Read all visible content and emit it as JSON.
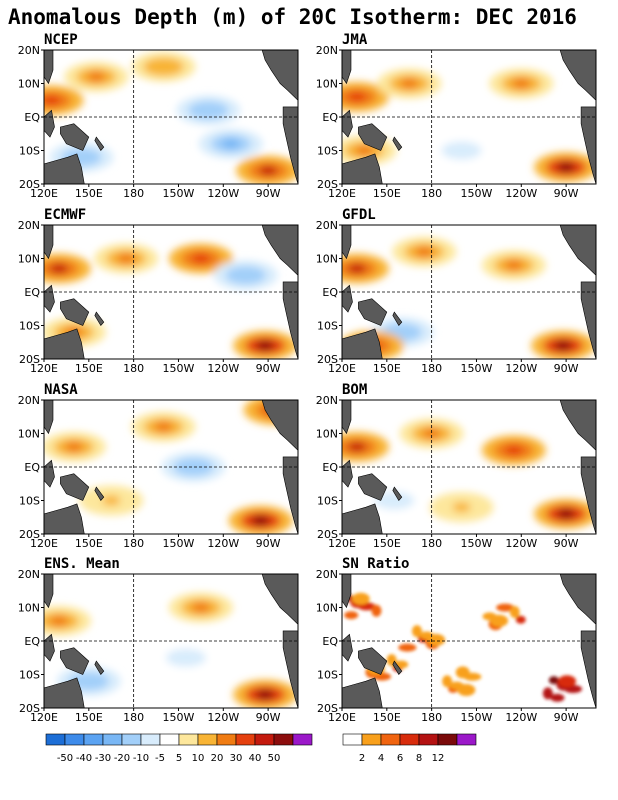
{
  "title": "Anomalous Depth (m) of 20C Isotherm: DEC 2016",
  "panels": [
    {
      "name": "NCEP"
    },
    {
      "name": "JMA"
    },
    {
      "name": "ECMWF"
    },
    {
      "name": "GFDL"
    },
    {
      "name": "NASA"
    },
    {
      "name": "BOM"
    },
    {
      "name": "ENS. Mean"
    },
    {
      "name": "SN Ratio"
    }
  ],
  "x_ticks": [
    "120E",
    "150E",
    "180",
    "150W",
    "120W",
    "90W"
  ],
  "y_ticks": [
    "20N",
    "10N",
    "EQ",
    "10S",
    "20S"
  ],
  "colorbar_anomaly": {
    "labels": [
      "-50",
      "-40",
      "-30",
      "-20",
      "-10",
      "-5",
      "5",
      "10",
      "20",
      "30",
      "40",
      "50"
    ],
    "colors": [
      "#1d6ed6",
      "#3d8bea",
      "#5ba3f2",
      "#79b7f5",
      "#a2cff9",
      "#d8ecfc",
      "#ffffff",
      "#fde79c",
      "#f8b435",
      "#f07c13",
      "#e5400f",
      "#c41a0e",
      "#8c0d0d",
      "#9b18c9"
    ]
  },
  "colorbar_snratio": {
    "labels": [
      "2",
      "4",
      "6",
      "8",
      "12"
    ],
    "colors": [
      "#ffffff",
      "#f8a01c",
      "#f06410",
      "#d82c0c",
      "#b41212",
      "#7a0a0a",
      "#9b18c9"
    ]
  },
  "land_color": "#5a5a5a",
  "chart_data": {
    "type": "heatmap",
    "title": "Anomalous Depth (m) of 20C Isotherm: DEC 2016",
    "panels": [
      "NCEP",
      "JMA",
      "ECMWF",
      "GFDL",
      "NASA",
      "BOM",
      "ENS. Mean",
      "SN Ratio"
    ],
    "x_range": [
      "120E",
      "70W"
    ],
    "y_range": [
      "20S",
      "20N"
    ],
    "x_ticks": [
      "120E",
      "150E",
      "180",
      "150W",
      "120W",
      "90W"
    ],
    "y_ticks": [
      "20N",
      "10N",
      "EQ",
      "10S",
      "20S"
    ],
    "anomaly_levels": [
      -50,
      -40,
      -30,
      -20,
      -10,
      -5,
      5,
      10,
      20,
      30,
      40,
      50
    ],
    "sn_ratio_levels": [
      2,
      4,
      6,
      8,
      12
    ],
    "grid_lines": "dashed at EQ and 180",
    "features": {
      "NCEP": [
        {
          "lon": 155,
          "lat": 12,
          "value": 20
        },
        {
          "lon": 125,
          "lat": 5,
          "value": 30
        },
        {
          "lon": 230,
          "lat": 2,
          "value": -20
        },
        {
          "lon": 245,
          "lat": -8,
          "value": -25
        },
        {
          "lon": 270,
          "lat": -16,
          "value": 40
        },
        {
          "lon": 200,
          "lat": 15,
          "value": 15
        },
        {
          "lon": 145,
          "lat": -12,
          "value": -15
        }
      ],
      "JMA": [
        {
          "lon": 130,
          "lat": 6,
          "value": 35
        },
        {
          "lon": 165,
          "lat": 10,
          "value": 20
        },
        {
          "lon": 240,
          "lat": 10,
          "value": 25
        },
        {
          "lon": 270,
          "lat": -15,
          "value": 50
        },
        {
          "lon": 200,
          "lat": -10,
          "value": -10
        },
        {
          "lon": 135,
          "lat": -10,
          "value": 25
        }
      ],
      "ECMWF": [
        {
          "lon": 130,
          "lat": 7,
          "value": 40
        },
        {
          "lon": 175,
          "lat": 10,
          "value": 25
        },
        {
          "lon": 225,
          "lat": 10,
          "value": 35
        },
        {
          "lon": 268,
          "lat": -16,
          "value": 50
        },
        {
          "lon": 255,
          "lat": 5,
          "value": -15
        },
        {
          "lon": 140,
          "lat": -12,
          "value": 20
        }
      ],
      "GFDL": [
        {
          "lon": 130,
          "lat": 7,
          "value": 40
        },
        {
          "lon": 175,
          "lat": 12,
          "value": 20
        },
        {
          "lon": 235,
          "lat": 8,
          "value": 25
        },
        {
          "lon": 268,
          "lat": -16,
          "value": 50
        },
        {
          "lon": 160,
          "lat": -12,
          "value": -20
        },
        {
          "lon": 140,
          "lat": -16,
          "value": 30
        }
      ],
      "NASA": [
        {
          "lon": 140,
          "lat": 6,
          "value": 20
        },
        {
          "lon": 200,
          "lat": 12,
          "value": 20
        },
        {
          "lon": 275,
          "lat": 17,
          "value": 40
        },
        {
          "lon": 265,
          "lat": -16,
          "value": 50
        },
        {
          "lon": 220,
          "lat": 0,
          "value": -15
        },
        {
          "lon": 165,
          "lat": -10,
          "value": 10
        }
      ],
      "BOM": [
        {
          "lon": 130,
          "lat": 6,
          "value": 40
        },
        {
          "lon": 180,
          "lat": 10,
          "value": 25
        },
        {
          "lon": 235,
          "lat": 5,
          "value": 30
        },
        {
          "lon": 270,
          "lat": -14,
          "value": 50
        },
        {
          "lon": 200,
          "lat": -12,
          "value": 10
        },
        {
          "lon": 155,
          "lat": -10,
          "value": -10
        }
      ],
      "ENS. Mean": [
        {
          "lon": 130,
          "lat": 6,
          "value": 25
        },
        {
          "lon": 225,
          "lat": 10,
          "value": 20
        },
        {
          "lon": 268,
          "lat": -16,
          "value": 50
        },
        {
          "lon": 215,
          "lat": -5,
          "value": -10
        },
        {
          "lon": 150,
          "lat": -12,
          "value": -15
        }
      ],
      "SN Ratio": [
        {
          "lon": 135,
          "lat": 10,
          "value": 8
        },
        {
          "lon": 175,
          "lat": 0,
          "value": 6
        },
        {
          "lon": 230,
          "lat": 8,
          "value": 6
        },
        {
          "lon": 265,
          "lat": -14,
          "value": 12
        },
        {
          "lon": 150,
          "lat": -8,
          "value": 6
        },
        {
          "lon": 200,
          "lat": -12,
          "value": 4
        }
      ]
    }
  }
}
